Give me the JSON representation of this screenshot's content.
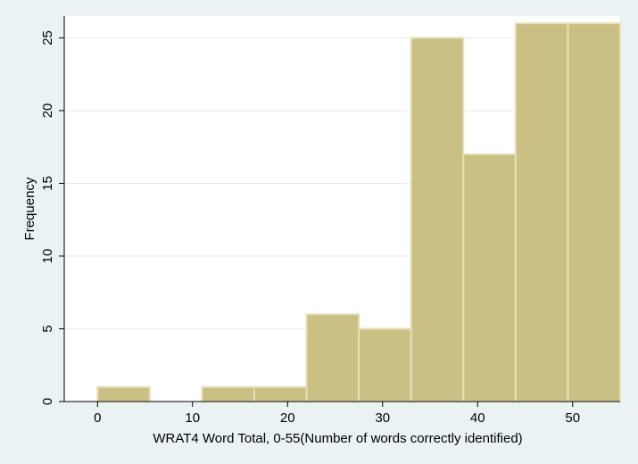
{
  "chart_data": {
    "type": "histogram",
    "xlabel": "WRAT4 Word Total, 0-55(Number of words correctly identified)",
    "ylabel": "Frequency",
    "xlim": [
      -3.5,
      55
    ],
    "ylim": [
      0,
      26.5
    ],
    "xticks": [
      0,
      10,
      20,
      30,
      40,
      50
    ],
    "yticks": [
      0,
      5,
      10,
      15,
      20,
      25
    ],
    "bin_width": 5.5,
    "bins": [
      {
        "start": 0,
        "end": 5.5,
        "value": 1
      },
      {
        "start": 5.5,
        "end": 11,
        "value": 0
      },
      {
        "start": 11,
        "end": 16.5,
        "value": 1
      },
      {
        "start": 16.5,
        "end": 22,
        "value": 1
      },
      {
        "start": 22,
        "end": 27.5,
        "value": 6
      },
      {
        "start": 27.5,
        "end": 33,
        "value": 5
      },
      {
        "start": 33,
        "end": 38.5,
        "value": 25
      },
      {
        "start": 38.5,
        "end": 44,
        "value": 17
      },
      {
        "start": 44,
        "end": 49.5,
        "value": 26
      },
      {
        "start": 49.5,
        "end": 55,
        "value": 26
      }
    ],
    "grid": "horizontal",
    "legend": "none"
  },
  "colors": {
    "background": "#eaf2f3",
    "plot_area": "#ffffff",
    "bar_fill": "#cbc083",
    "bar_edge": "#e5dfb8",
    "grid": "#e6edee",
    "axis": "#000000"
  }
}
